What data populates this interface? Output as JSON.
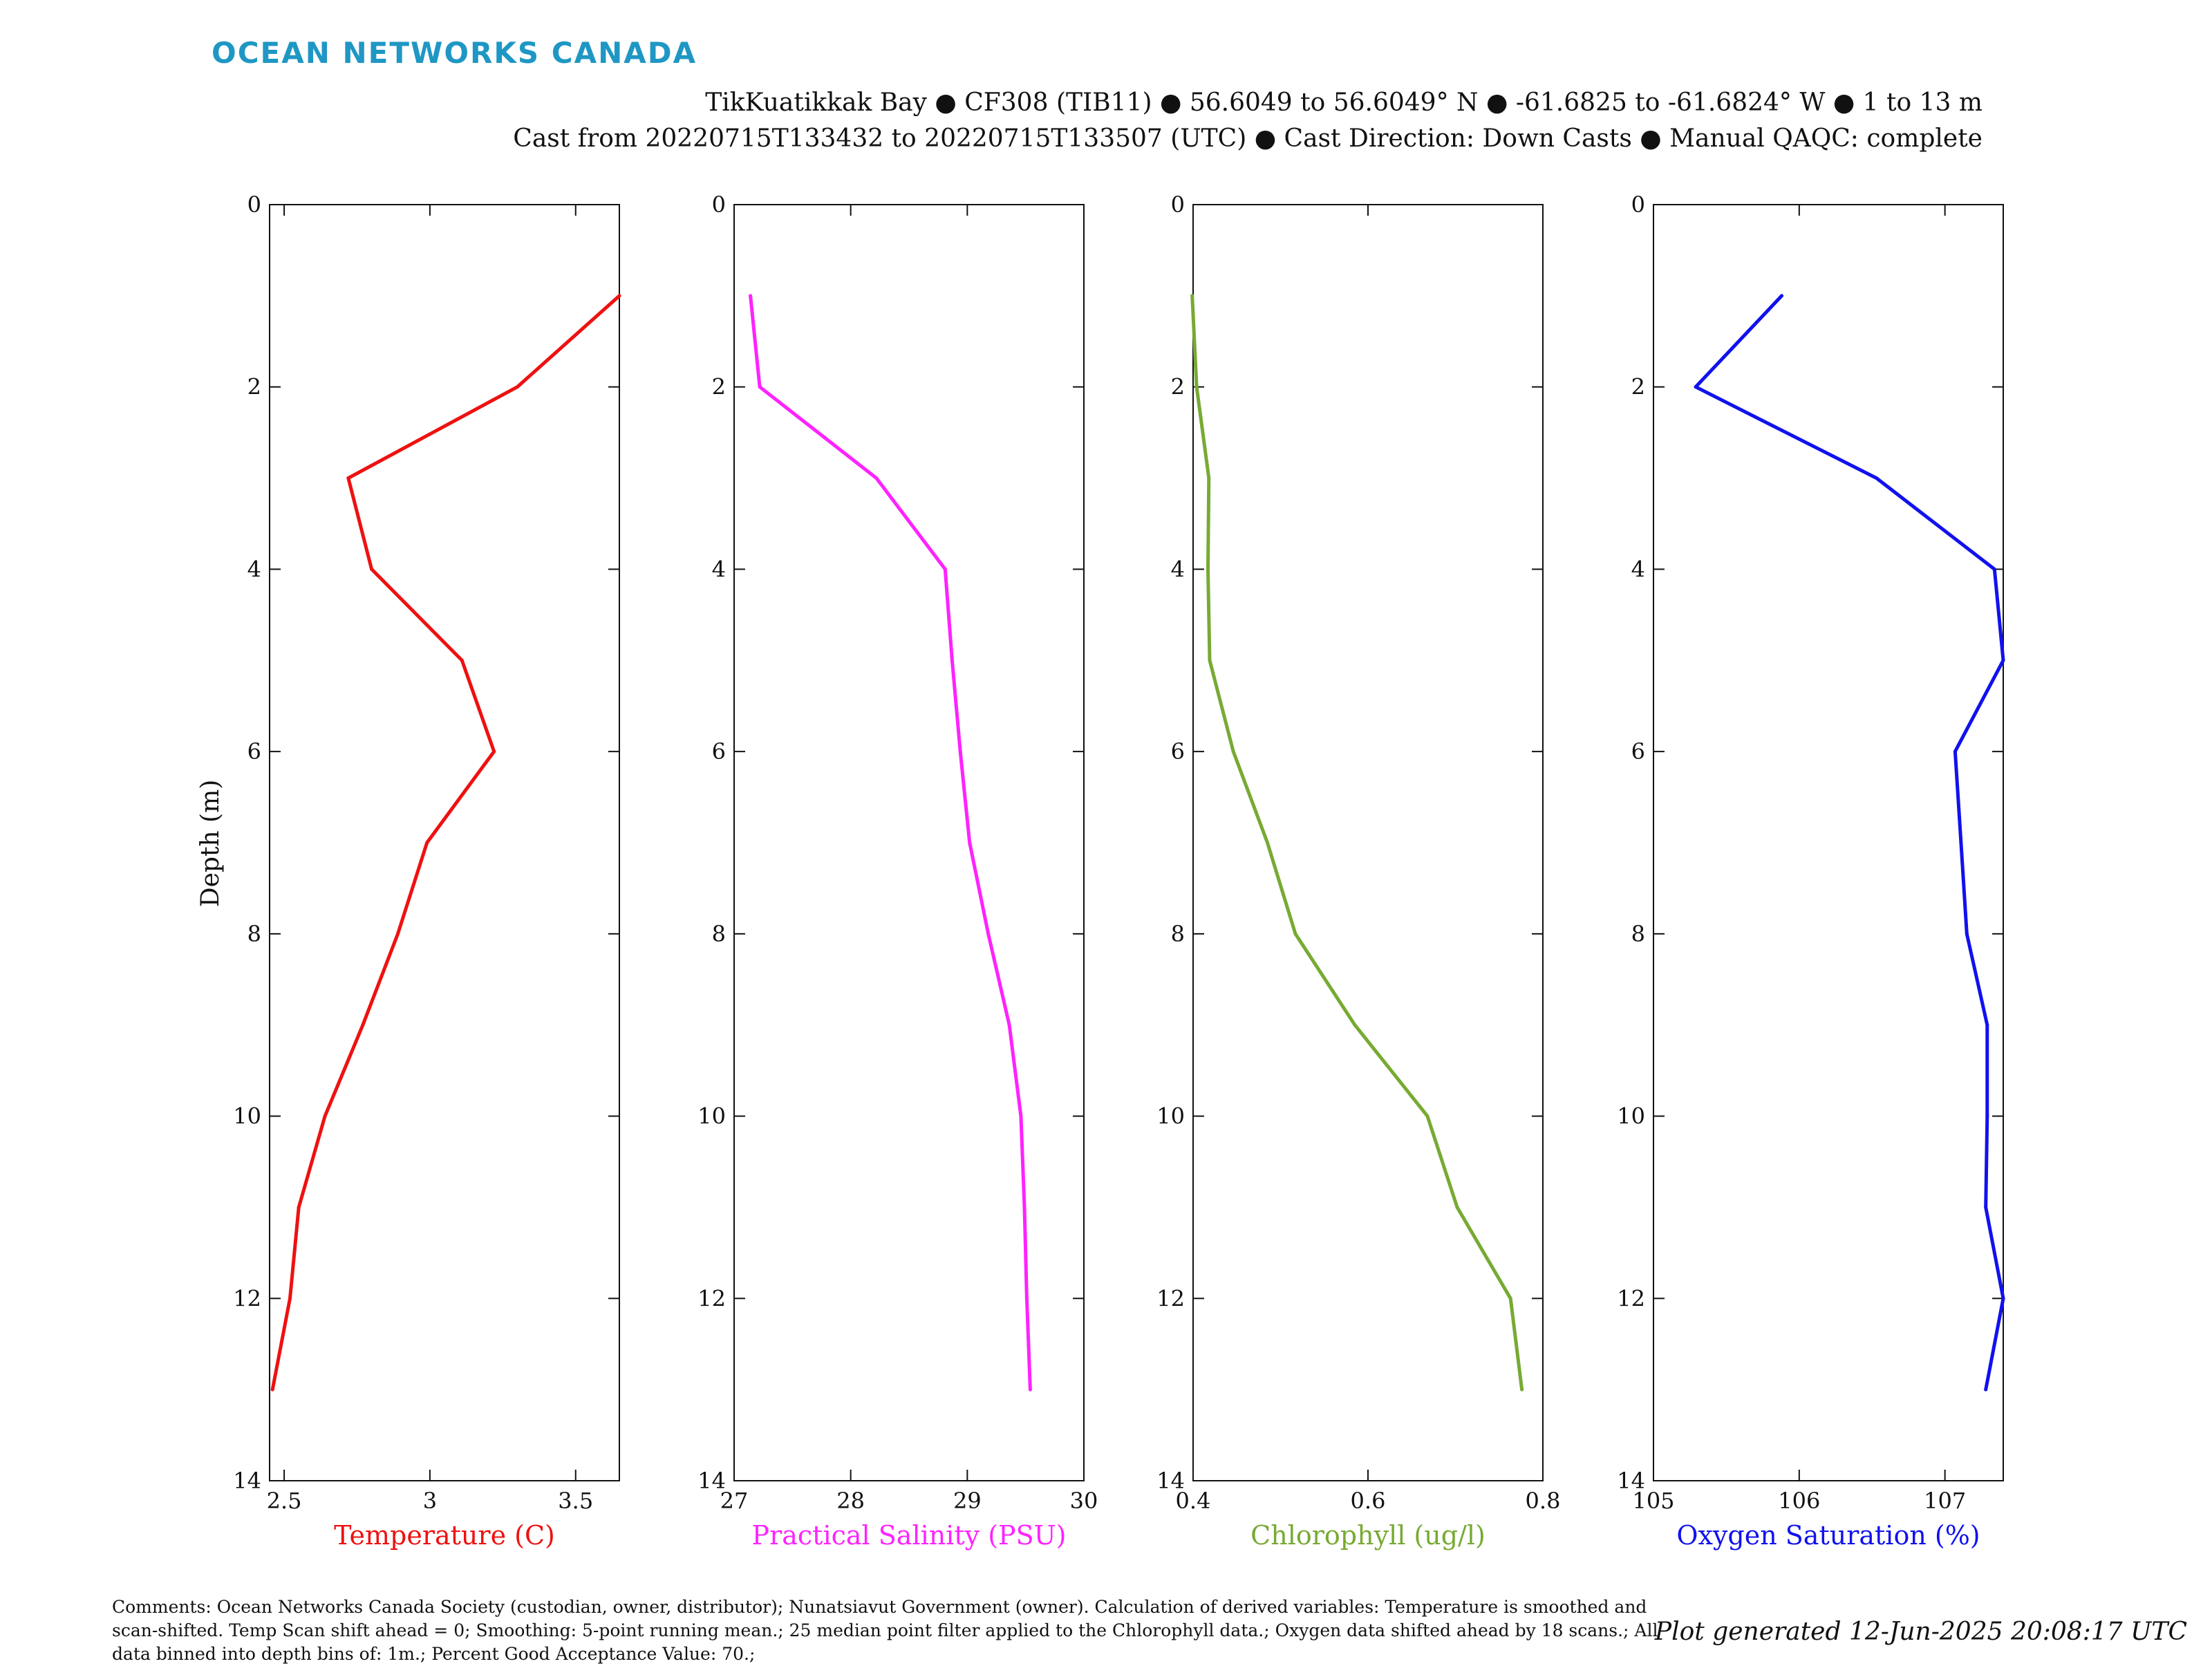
{
  "logo": "OCEAN NETWORKS CANADA",
  "header": {
    "line1": "TikKuatikkak Bay ● CF308 (TIB11) ● 56.6049 to 56.6049° N ● -61.6825 to -61.6824° W ● 1 to 13 m",
    "line2": "Cast from 20220715T133432 to 20220715T133507 (UTC) ● Cast Direction: Down Casts ● Manual QAQC: complete"
  },
  "ylabel": "Depth (m)",
  "comments": "Comments: Ocean Networks Canada Society (custodian, owner, distributor); Nunatsiavut Government (owner). Calculation of derived variables: Temperature is smoothed and scan-shifted. Temp Scan shift ahead = 0; Smoothing: 5-point running mean.; 25 median point filter applied to the Chlorophyll data.; Oxygen data shifted ahead by 18 scans.; All data binned into depth bins of: 1m.; Percent Good Acceptance Value: 70.;",
  "generated": "Plot generated 12-Jun-2025 20:08:17 UTC",
  "chart_data": [
    {
      "type": "line",
      "xlabel": "Temperature (C)",
      "ylabel": "Depth (m)",
      "color": "#ee1111",
      "xlim": [
        2.45,
        3.65
      ],
      "ylim": [
        0,
        14
      ],
      "y_inverted": true,
      "xticks": [
        "2.5",
        "3",
        "3.5"
      ],
      "xtick_values": [
        2.5,
        3.0,
        3.5
      ],
      "yticks": [
        "0",
        "2",
        "4",
        "6",
        "8",
        "10",
        "12",
        "14"
      ],
      "ytick_values": [
        0,
        2,
        4,
        6,
        8,
        10,
        12,
        14
      ],
      "x": [
        3.65,
        3.3,
        2.72,
        2.8,
        3.11,
        3.22,
        2.99,
        2.89,
        2.77,
        2.64,
        2.55,
        2.52,
        2.46
      ],
      "y": [
        1,
        2,
        3,
        4,
        5,
        6,
        7,
        8,
        9,
        10,
        11,
        12,
        13
      ]
    },
    {
      "type": "line",
      "xlabel": "Practical Salinity (PSU)",
      "ylabel": "Depth (m)",
      "color": "#ff22ff",
      "xlim": [
        27,
        30
      ],
      "ylim": [
        0,
        14
      ],
      "y_inverted": true,
      "xticks": [
        "27",
        "28",
        "29",
        "30"
      ],
      "xtick_values": [
        27,
        28,
        29,
        30
      ],
      "yticks": [
        "0",
        "2",
        "4",
        "6",
        "8",
        "10",
        "12",
        "14"
      ],
      "ytick_values": [
        0,
        2,
        4,
        6,
        8,
        10,
        12,
        14
      ],
      "x": [
        27.14,
        27.22,
        28.22,
        28.81,
        28.87,
        28.94,
        29.02,
        29.18,
        29.36,
        29.46,
        29.49,
        29.51,
        29.54
      ],
      "y": [
        1,
        2,
        3,
        4,
        5,
        6,
        7,
        8,
        9,
        10,
        11,
        12,
        13
      ]
    },
    {
      "type": "line",
      "xlabel": "Chlorophyll (ug/l)",
      "ylabel": "Depth (m)",
      "color": "#77aa33",
      "xlim": [
        0.4,
        0.8
      ],
      "ylim": [
        0,
        14
      ],
      "y_inverted": true,
      "xticks": [
        "0.4",
        "0.6",
        "0.8"
      ],
      "xtick_values": [
        0.4,
        0.6,
        0.8
      ],
      "yticks": [
        "0",
        "2",
        "4",
        "6",
        "8",
        "10",
        "12",
        "14"
      ],
      "ytick_values": [
        0,
        2,
        4,
        6,
        8,
        10,
        12,
        14
      ],
      "x": [
        0.399,
        0.404,
        0.418,
        0.417,
        0.419,
        0.446,
        0.485,
        0.517,
        0.585,
        0.668,
        0.702,
        0.763,
        0.776
      ],
      "y": [
        1,
        2,
        3,
        4,
        5,
        6,
        7,
        8,
        9,
        10,
        11,
        12,
        13
      ]
    },
    {
      "type": "line",
      "xlabel": "Oxygen Saturation (%)",
      "ylabel": "Depth (m)",
      "color": "#1111ee",
      "xlim": [
        105,
        107.4
      ],
      "ylim": [
        0,
        14
      ],
      "y_inverted": true,
      "xticks": [
        "105",
        "106",
        "107"
      ],
      "xtick_values": [
        105,
        106,
        107
      ],
      "yticks": [
        "0",
        "2",
        "4",
        "6",
        "8",
        "10",
        "12",
        "14"
      ],
      "ytick_values": [
        0,
        2,
        4,
        6,
        8,
        10,
        12,
        14
      ],
      "x": [
        105.88,
        105.29,
        106.53,
        107.34,
        107.4,
        107.07,
        107.11,
        107.15,
        107.29,
        107.29,
        107.28,
        107.4,
        107.28
      ],
      "y": [
        1,
        2,
        3,
        4,
        5,
        6,
        7,
        8,
        9,
        10,
        11,
        12,
        13
      ]
    }
  ]
}
